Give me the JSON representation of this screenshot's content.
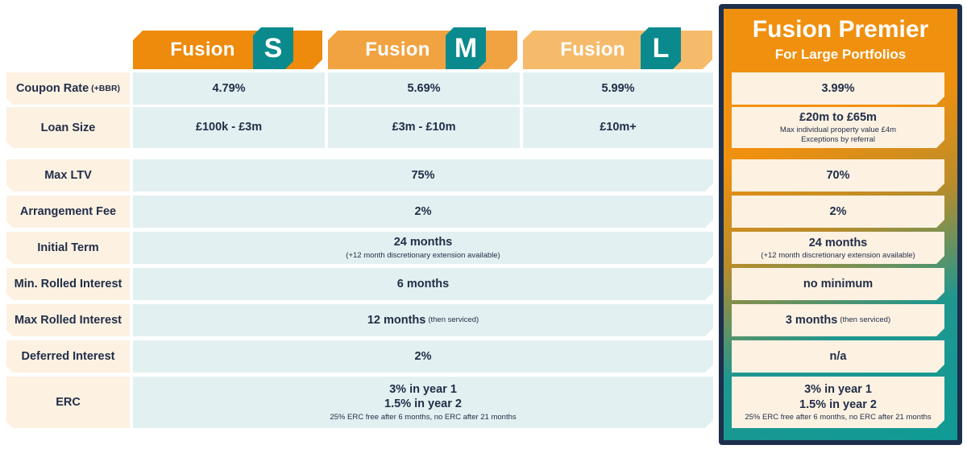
{
  "plans": [
    {
      "word": "Fusion",
      "letter": "S",
      "color": "#ee8a0c"
    },
    {
      "word": "Fusion",
      "letter": "M",
      "color": "#f2a341"
    },
    {
      "word": "Fusion",
      "letter": "L",
      "color": "#f5bb6b"
    }
  ],
  "premier": {
    "title": "Fusion Premier",
    "subtitle": "For Large Portfolios"
  },
  "rows": {
    "coupon": {
      "label": "Coupon Rate",
      "label_suffix": "(+BBR)",
      "s": "4.79%",
      "m": "5.69%",
      "l": "5.99%",
      "premier": "3.99%"
    },
    "loan_size": {
      "label": "Loan Size",
      "s": "£100k - £3m",
      "m": "£3m - £10m",
      "l": "£10m+",
      "premier": "£20m to £65m",
      "premier_note_1": "Max individual property value £4m",
      "premier_note_2": "Exceptions by referral"
    },
    "max_ltv": {
      "label": "Max LTV",
      "standard": "75%",
      "premier": "70%"
    },
    "arrangement_fee": {
      "label": "Arrangement Fee",
      "standard": "2%",
      "premier": "2%"
    },
    "initial_term": {
      "label": "Initial Term",
      "standard": "24 months",
      "standard_note": "(+12 month discretionary extension available)",
      "premier": "24 months",
      "premier_note": "(+12 month discretionary extension available)"
    },
    "min_rolled": {
      "label": "Min. Rolled Interest",
      "standard": "6 months",
      "premier": "no minimum"
    },
    "max_rolled": {
      "label": "Max Rolled Interest",
      "standard": "12 months",
      "standard_note": "(then serviced)",
      "premier": "3 months",
      "premier_note": "(then serviced)"
    },
    "deferred": {
      "label": "Deferred Interest",
      "standard": "2%",
      "premier": "n/a"
    },
    "erc": {
      "label": "ERC",
      "standard_1": "3% in year 1",
      "standard_2": "1.5% in year 2",
      "standard_note": "25% ERC free after 6 months, no ERC after 21 months",
      "premier_1": "3% in year 1",
      "premier_2": "1.5% in year 2",
      "premier_note": "25% ERC free after 6 months, no ERC after 21 months"
    }
  }
}
